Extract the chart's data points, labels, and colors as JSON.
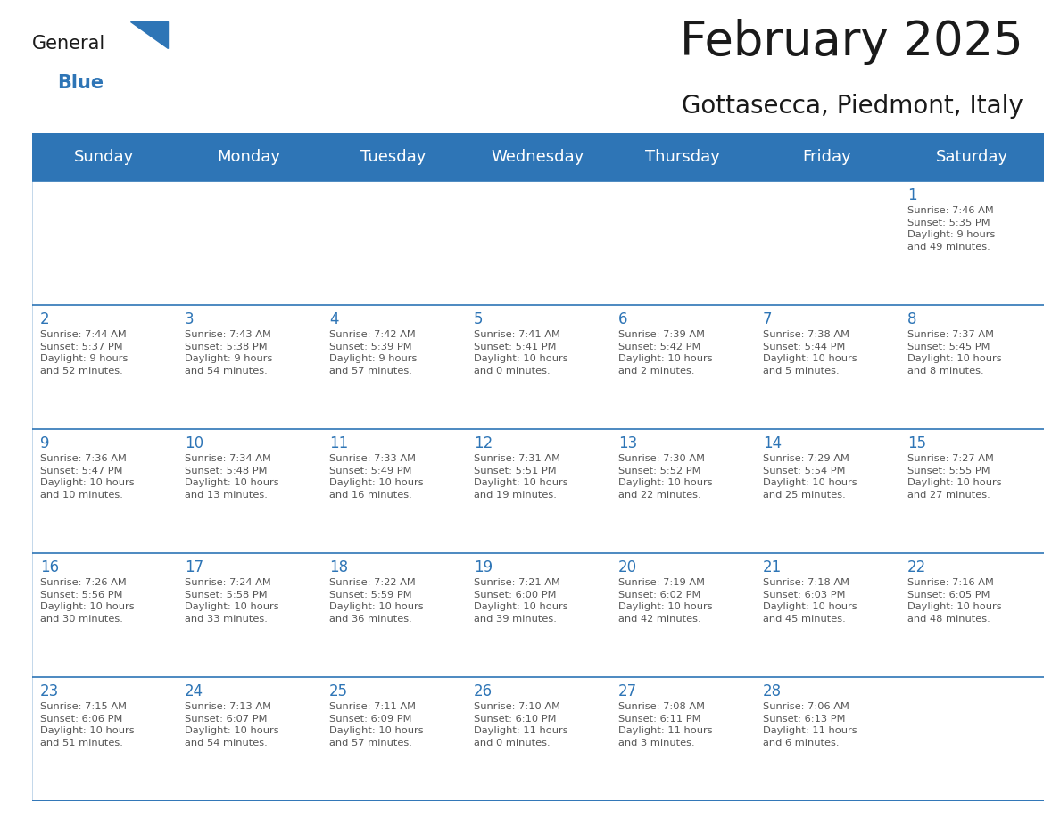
{
  "title": "February 2025",
  "subtitle": "Gottasecca, Piedmont, Italy",
  "header_bg": "#2E75B6",
  "header_text_color": "#FFFFFF",
  "cell_border_color": "#2E75B6",
  "day_number_color": "#2E75B6",
  "info_text_color": "#555555",
  "background_color": "#FFFFFF",
  "days_of_week": [
    "Sunday",
    "Monday",
    "Tuesday",
    "Wednesday",
    "Thursday",
    "Friday",
    "Saturday"
  ],
  "weeks": [
    [
      {
        "day": null,
        "info": ""
      },
      {
        "day": null,
        "info": ""
      },
      {
        "day": null,
        "info": ""
      },
      {
        "day": null,
        "info": ""
      },
      {
        "day": null,
        "info": ""
      },
      {
        "day": null,
        "info": ""
      },
      {
        "day": 1,
        "info": "Sunrise: 7:46 AM\nSunset: 5:35 PM\nDaylight: 9 hours\nand 49 minutes."
      }
    ],
    [
      {
        "day": 2,
        "info": "Sunrise: 7:44 AM\nSunset: 5:37 PM\nDaylight: 9 hours\nand 52 minutes."
      },
      {
        "day": 3,
        "info": "Sunrise: 7:43 AM\nSunset: 5:38 PM\nDaylight: 9 hours\nand 54 minutes."
      },
      {
        "day": 4,
        "info": "Sunrise: 7:42 AM\nSunset: 5:39 PM\nDaylight: 9 hours\nand 57 minutes."
      },
      {
        "day": 5,
        "info": "Sunrise: 7:41 AM\nSunset: 5:41 PM\nDaylight: 10 hours\nand 0 minutes."
      },
      {
        "day": 6,
        "info": "Sunrise: 7:39 AM\nSunset: 5:42 PM\nDaylight: 10 hours\nand 2 minutes."
      },
      {
        "day": 7,
        "info": "Sunrise: 7:38 AM\nSunset: 5:44 PM\nDaylight: 10 hours\nand 5 minutes."
      },
      {
        "day": 8,
        "info": "Sunrise: 7:37 AM\nSunset: 5:45 PM\nDaylight: 10 hours\nand 8 minutes."
      }
    ],
    [
      {
        "day": 9,
        "info": "Sunrise: 7:36 AM\nSunset: 5:47 PM\nDaylight: 10 hours\nand 10 minutes."
      },
      {
        "day": 10,
        "info": "Sunrise: 7:34 AM\nSunset: 5:48 PM\nDaylight: 10 hours\nand 13 minutes."
      },
      {
        "day": 11,
        "info": "Sunrise: 7:33 AM\nSunset: 5:49 PM\nDaylight: 10 hours\nand 16 minutes."
      },
      {
        "day": 12,
        "info": "Sunrise: 7:31 AM\nSunset: 5:51 PM\nDaylight: 10 hours\nand 19 minutes."
      },
      {
        "day": 13,
        "info": "Sunrise: 7:30 AM\nSunset: 5:52 PM\nDaylight: 10 hours\nand 22 minutes."
      },
      {
        "day": 14,
        "info": "Sunrise: 7:29 AM\nSunset: 5:54 PM\nDaylight: 10 hours\nand 25 minutes."
      },
      {
        "day": 15,
        "info": "Sunrise: 7:27 AM\nSunset: 5:55 PM\nDaylight: 10 hours\nand 27 minutes."
      }
    ],
    [
      {
        "day": 16,
        "info": "Sunrise: 7:26 AM\nSunset: 5:56 PM\nDaylight: 10 hours\nand 30 minutes."
      },
      {
        "day": 17,
        "info": "Sunrise: 7:24 AM\nSunset: 5:58 PM\nDaylight: 10 hours\nand 33 minutes."
      },
      {
        "day": 18,
        "info": "Sunrise: 7:22 AM\nSunset: 5:59 PM\nDaylight: 10 hours\nand 36 minutes."
      },
      {
        "day": 19,
        "info": "Sunrise: 7:21 AM\nSunset: 6:00 PM\nDaylight: 10 hours\nand 39 minutes."
      },
      {
        "day": 20,
        "info": "Sunrise: 7:19 AM\nSunset: 6:02 PM\nDaylight: 10 hours\nand 42 minutes."
      },
      {
        "day": 21,
        "info": "Sunrise: 7:18 AM\nSunset: 6:03 PM\nDaylight: 10 hours\nand 45 minutes."
      },
      {
        "day": 22,
        "info": "Sunrise: 7:16 AM\nSunset: 6:05 PM\nDaylight: 10 hours\nand 48 minutes."
      }
    ],
    [
      {
        "day": 23,
        "info": "Sunrise: 7:15 AM\nSunset: 6:06 PM\nDaylight: 10 hours\nand 51 minutes."
      },
      {
        "day": 24,
        "info": "Sunrise: 7:13 AM\nSunset: 6:07 PM\nDaylight: 10 hours\nand 54 minutes."
      },
      {
        "day": 25,
        "info": "Sunrise: 7:11 AM\nSunset: 6:09 PM\nDaylight: 10 hours\nand 57 minutes."
      },
      {
        "day": 26,
        "info": "Sunrise: 7:10 AM\nSunset: 6:10 PM\nDaylight: 11 hours\nand 0 minutes."
      },
      {
        "day": 27,
        "info": "Sunrise: 7:08 AM\nSunset: 6:11 PM\nDaylight: 11 hours\nand 3 minutes."
      },
      {
        "day": 28,
        "info": "Sunrise: 7:06 AM\nSunset: 6:13 PM\nDaylight: 11 hours\nand 6 minutes."
      },
      {
        "day": null,
        "info": ""
      }
    ]
  ],
  "logo_general_color": "#1a1a1a",
  "logo_blue_color": "#2E75B6",
  "title_fontsize": 38,
  "subtitle_fontsize": 20,
  "header_fontsize": 13,
  "day_number_fontsize": 12,
  "info_fontsize": 8.2
}
